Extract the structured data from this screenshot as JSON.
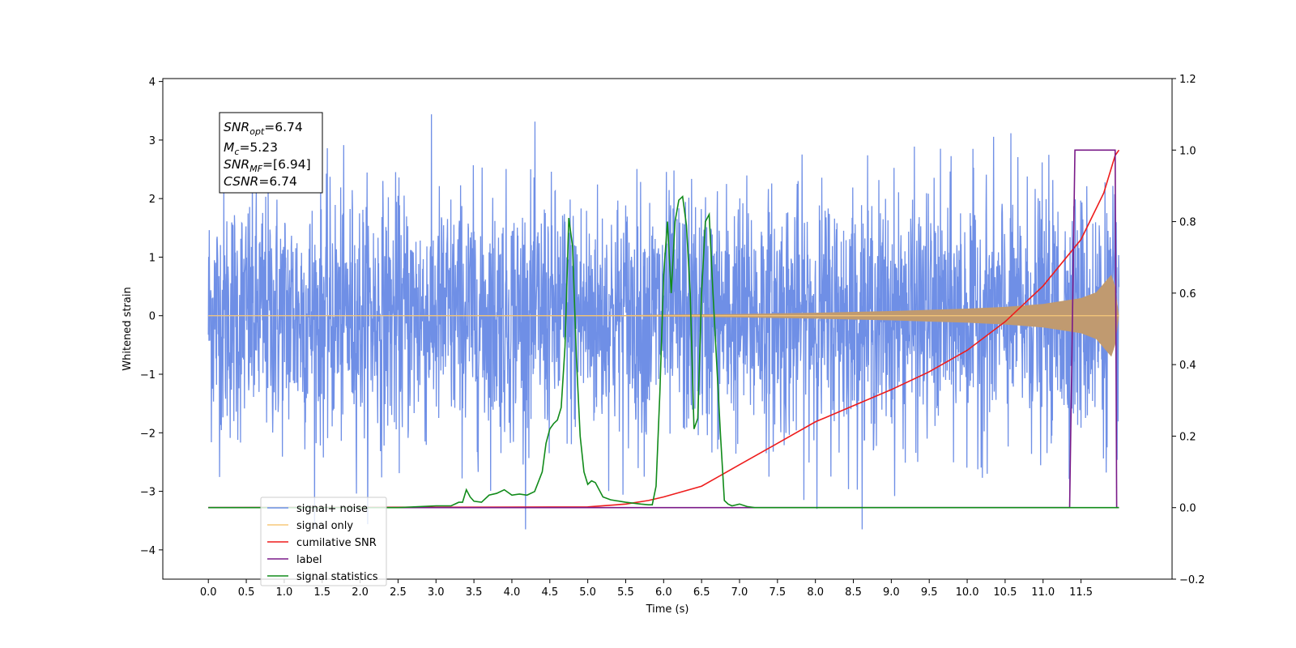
{
  "chart_data": {
    "type": "line",
    "title": "",
    "xlabel": "Time (s)",
    "ylabel": "Whitened strain",
    "xlim": [
      -0.6,
      12.7
    ],
    "ylim": [
      -4.5,
      4.05
    ],
    "y2lim": [
      -0.2,
      1.2
    ],
    "x_ticks": [
      "0.0",
      "0.5",
      "1.0",
      "1.5",
      "2.0",
      "2.5",
      "3.0",
      "3.5",
      "4.0",
      "4.5",
      "5.0",
      "5.5",
      "6.0",
      "6.5",
      "7.0",
      "7.5",
      "8.0",
      "8.5",
      "9.0",
      "9.5",
      "10.0",
      "10.5",
      "11.0",
      "11.5"
    ],
    "y_ticks": [
      "4",
      "3",
      "2",
      "1",
      "0",
      "−1",
      "−2",
      "−3",
      "−4"
    ],
    "y2_ticks": [
      "1.2",
      "1.0",
      "0.8",
      "0.6",
      "0.4",
      "0.2",
      "0.0",
      "−0.2"
    ],
    "grid": false,
    "legend_position": "lower-left",
    "annotation": {
      "snr_opt": {
        "base": "SNR",
        "sub": "opt",
        "value": "=6.74"
      },
      "mc": {
        "base": "M",
        "sub": "c",
        "value": "=5.23"
      },
      "snr_mf": {
        "base": "SNR",
        "sub": "MF",
        "value": "=[6.94]"
      },
      "csnr": {
        "base": "CSNR",
        "value": "=6.74"
      }
    },
    "series": [
      {
        "name": "signal+ noise",
        "color": "#6f8fe6",
        "axis": "left",
        "x_range": [
          0.0,
          12.0
        ],
        "amplitude_envelope": [
          1.0,
          3.65
        ]
      },
      {
        "name": "signal only",
        "color": "#f7c87a",
        "fill_color": "#c09a70",
        "axis": "left",
        "x": [
          0.0,
          5.5,
          7.0,
          8.0,
          9.0,
          10.0,
          10.5,
          11.0,
          11.5,
          11.7,
          11.8,
          11.9,
          11.95,
          12.0
        ],
        "envelope": [
          0.0,
          0.01,
          0.03,
          0.05,
          0.08,
          0.12,
          0.15,
          0.2,
          0.3,
          0.4,
          0.55,
          0.7,
          0.5,
          0.0
        ]
      },
      {
        "name": "cumilative SNR",
        "color": "#ee1c1c",
        "axis": "right",
        "x": [
          0.0,
          5.0,
          5.5,
          5.8,
          6.0,
          6.5,
          7.0,
          7.5,
          8.0,
          8.5,
          9.0,
          9.5,
          10.0,
          10.5,
          11.0,
          11.5,
          11.8,
          11.95,
          12.0
        ],
        "values": [
          0.0,
          0.002,
          0.01,
          0.02,
          0.03,
          0.06,
          0.12,
          0.18,
          0.24,
          0.285,
          0.33,
          0.38,
          0.44,
          0.52,
          0.62,
          0.75,
          0.88,
          0.985,
          1.0
        ]
      },
      {
        "name": "label",
        "color": "#7a1a88",
        "axis": "right",
        "x": [
          0.0,
          11.35,
          11.42,
          11.5,
          11.9,
          11.95,
          11.97,
          12.0
        ],
        "values": [
          0.0,
          0.0,
          1.0,
          1.0,
          1.0,
          1.0,
          0.0,
          0.0
        ]
      },
      {
        "name": "signal statistics",
        "color": "#118b1a",
        "axis": "right",
        "x": [
          0.0,
          2.5,
          3.0,
          3.2,
          3.3,
          3.35,
          3.4,
          3.45,
          3.5,
          3.6,
          3.7,
          3.8,
          3.9,
          4.0,
          4.1,
          4.2,
          4.3,
          4.4,
          4.45,
          4.5,
          4.55,
          4.6,
          4.65,
          4.7,
          4.75,
          4.8,
          4.85,
          4.9,
          4.95,
          5.0,
          5.05,
          5.1,
          5.2,
          5.3,
          5.5,
          5.7,
          5.8,
          5.85,
          5.9,
          5.95,
          6.0,
          6.05,
          6.1,
          6.15,
          6.2,
          6.25,
          6.3,
          6.35,
          6.4,
          6.45,
          6.5,
          6.55,
          6.6,
          6.65,
          6.7,
          6.75,
          6.8,
          6.85,
          6.9,
          7.0,
          7.1,
          7.2,
          7.5,
          12.0
        ],
        "values": [
          0.0,
          0.0,
          0.005,
          0.005,
          0.015,
          0.015,
          0.05,
          0.03,
          0.018,
          0.015,
          0.035,
          0.04,
          0.05,
          0.035,
          0.038,
          0.035,
          0.045,
          0.1,
          0.18,
          0.22,
          0.235,
          0.245,
          0.28,
          0.45,
          0.81,
          0.73,
          0.42,
          0.2,
          0.1,
          0.065,
          0.075,
          0.07,
          0.03,
          0.022,
          0.015,
          0.01,
          0.008,
          0.008,
          0.06,
          0.32,
          0.65,
          0.8,
          0.6,
          0.8,
          0.86,
          0.87,
          0.79,
          0.6,
          0.22,
          0.25,
          0.6,
          0.8,
          0.82,
          0.6,
          0.4,
          0.2,
          0.02,
          0.01,
          0.005,
          0.01,
          0.003,
          0.0,
          0.0,
          0.0
        ]
      }
    ]
  }
}
